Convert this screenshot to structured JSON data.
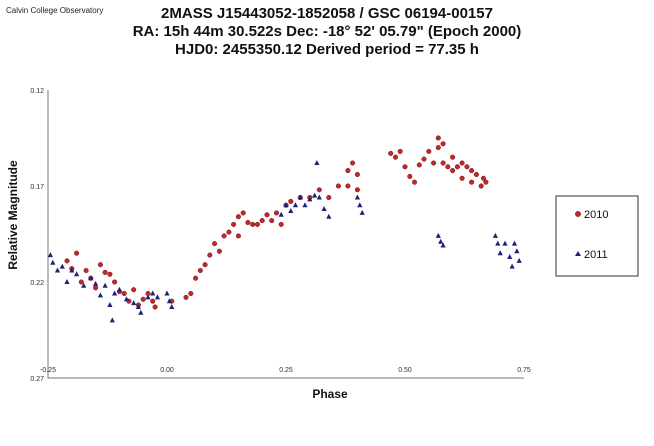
{
  "header": {
    "observatory": "Calvin College Observatory",
    "title_line1": "2MASS J15443052-1852058 / GSC 06194-00157",
    "title_line2": "RA: 15h 44m 30.522s   Dec:  -18° 52' 05.79\"  (Epoch 2000)",
    "title_line3": "HJD0: 2455350.12      Derived period =    77.35 h"
  },
  "chart_data": {
    "type": "scatter",
    "title": "2MASS J15443052-1852058 / GSC 06194-00157",
    "xlabel": "Phase",
    "ylabel": "Relative Magnitude",
    "xlim": [
      -0.25,
      0.75
    ],
    "ylim": [
      0.27,
      0.12
    ],
    "y_inverted": true,
    "x_ticks": [
      "-0.25",
      "0.00",
      "0.25",
      "0.50",
      "0.75"
    ],
    "y_ticks": [
      "0.12",
      "0.17",
      "0.22",
      "0.27"
    ],
    "legend_position": "right",
    "grid": false,
    "series": [
      {
        "name": "2010",
        "marker": "circle",
        "color": "#c0282a",
        "points": [
          [
            -0.21,
            0.209
          ],
          [
            -0.2,
            0.213
          ],
          [
            -0.19,
            0.205
          ],
          [
            -0.18,
            0.22
          ],
          [
            -0.17,
            0.214
          ],
          [
            -0.16,
            0.218
          ],
          [
            -0.15,
            0.223
          ],
          [
            -0.14,
            0.211
          ],
          [
            -0.13,
            0.215
          ],
          [
            -0.12,
            0.216
          ],
          [
            -0.11,
            0.22
          ],
          [
            -0.1,
            0.225
          ],
          [
            -0.09,
            0.226
          ],
          [
            -0.08,
            0.23
          ],
          [
            -0.07,
            0.224
          ],
          [
            -0.06,
            0.232
          ],
          [
            -0.05,
            0.229
          ],
          [
            -0.04,
            0.226
          ],
          [
            -0.03,
            0.23
          ],
          [
            -0.025,
            0.233
          ],
          [
            0.01,
            0.23
          ],
          [
            0.04,
            0.228
          ],
          [
            0.05,
            0.226
          ],
          [
            0.06,
            0.218
          ],
          [
            0.07,
            0.214
          ],
          [
            0.08,
            0.211
          ],
          [
            0.09,
            0.206
          ],
          [
            0.1,
            0.2
          ],
          [
            0.11,
            0.204
          ],
          [
            0.12,
            0.196
          ],
          [
            0.13,
            0.194
          ],
          [
            0.14,
            0.19
          ],
          [
            0.15,
            0.186
          ],
          [
            0.15,
            0.196
          ],
          [
            0.16,
            0.184
          ],
          [
            0.17,
            0.189
          ],
          [
            0.18,
            0.19
          ],
          [
            0.19,
            0.19
          ],
          [
            0.2,
            0.188
          ],
          [
            0.21,
            0.185
          ],
          [
            0.22,
            0.188
          ],
          [
            0.23,
            0.184
          ],
          [
            0.24,
            0.19
          ],
          [
            0.25,
            0.18
          ],
          [
            0.26,
            0.178
          ],
          [
            0.28,
            0.176
          ],
          [
            0.3,
            0.176
          ],
          [
            0.32,
            0.172
          ],
          [
            0.34,
            0.176
          ],
          [
            0.36,
            0.17
          ],
          [
            0.38,
            0.162
          ],
          [
            0.38,
            0.17
          ],
          [
            0.39,
            0.158
          ],
          [
            0.4,
            0.164
          ],
          [
            0.4,
            0.172
          ],
          [
            0.47,
            0.153
          ],
          [
            0.48,
            0.155
          ],
          [
            0.49,
            0.152
          ],
          [
            0.5,
            0.16
          ],
          [
            0.51,
            0.165
          ],
          [
            0.52,
            0.168
          ],
          [
            0.53,
            0.159
          ],
          [
            0.54,
            0.156
          ],
          [
            0.55,
            0.152
          ],
          [
            0.56,
            0.158
          ],
          [
            0.57,
            0.145
          ],
          [
            0.57,
            0.15
          ],
          [
            0.58,
            0.148
          ],
          [
            0.58,
            0.158
          ],
          [
            0.59,
            0.16
          ],
          [
            0.6,
            0.155
          ],
          [
            0.6,
            0.162
          ],
          [
            0.61,
            0.16
          ],
          [
            0.62,
            0.158
          ],
          [
            0.62,
            0.166
          ],
          [
            0.63,
            0.16
          ],
          [
            0.64,
            0.162
          ],
          [
            0.64,
            0.168
          ],
          [
            0.65,
            0.164
          ],
          [
            0.66,
            0.17
          ],
          [
            0.665,
            0.166
          ],
          [
            0.67,
            0.168
          ]
        ]
      },
      {
        "name": "2011",
        "marker": "triangle",
        "color": "#1c2377",
        "points": [
          [
            -0.245,
            0.206
          ],
          [
            -0.24,
            0.21
          ],
          [
            -0.23,
            0.214
          ],
          [
            -0.22,
            0.212
          ],
          [
            -0.21,
            0.22
          ],
          [
            -0.2,
            0.214
          ],
          [
            -0.19,
            0.216
          ],
          [
            -0.175,
            0.222
          ],
          [
            -0.16,
            0.218
          ],
          [
            -0.15,
            0.221
          ],
          [
            -0.14,
            0.227
          ],
          [
            -0.13,
            0.222
          ],
          [
            -0.12,
            0.232
          ],
          [
            -0.115,
            0.24
          ],
          [
            -0.11,
            0.226
          ],
          [
            -0.1,
            0.224
          ],
          [
            -0.085,
            0.229
          ],
          [
            -0.07,
            0.231
          ],
          [
            -0.06,
            0.233
          ],
          [
            -0.055,
            0.236
          ],
          [
            -0.04,
            0.228
          ],
          [
            -0.03,
            0.226
          ],
          [
            -0.02,
            0.228
          ],
          [
            0.0,
            0.226
          ],
          [
            0.005,
            0.23
          ],
          [
            0.01,
            0.233
          ],
          [
            0.24,
            0.185
          ],
          [
            0.25,
            0.18
          ],
          [
            0.26,
            0.183
          ],
          [
            0.27,
            0.18
          ],
          [
            0.28,
            0.176
          ],
          [
            0.29,
            0.18
          ],
          [
            0.3,
            0.177
          ],
          [
            0.31,
            0.175
          ],
          [
            0.315,
            0.158
          ],
          [
            0.32,
            0.176
          ],
          [
            0.33,
            0.182
          ],
          [
            0.34,
            0.186
          ],
          [
            0.4,
            0.176
          ],
          [
            0.405,
            0.18
          ],
          [
            0.41,
            0.184
          ],
          [
            0.57,
            0.196
          ],
          [
            0.575,
            0.199
          ],
          [
            0.58,
            0.201
          ],
          [
            0.69,
            0.196
          ],
          [
            0.695,
            0.2
          ],
          [
            0.7,
            0.205
          ],
          [
            0.71,
            0.2
          ],
          [
            0.72,
            0.207
          ],
          [
            0.725,
            0.212
          ],
          [
            0.73,
            0.2
          ],
          [
            0.735,
            0.204
          ],
          [
            0.74,
            0.209
          ]
        ]
      }
    ]
  }
}
